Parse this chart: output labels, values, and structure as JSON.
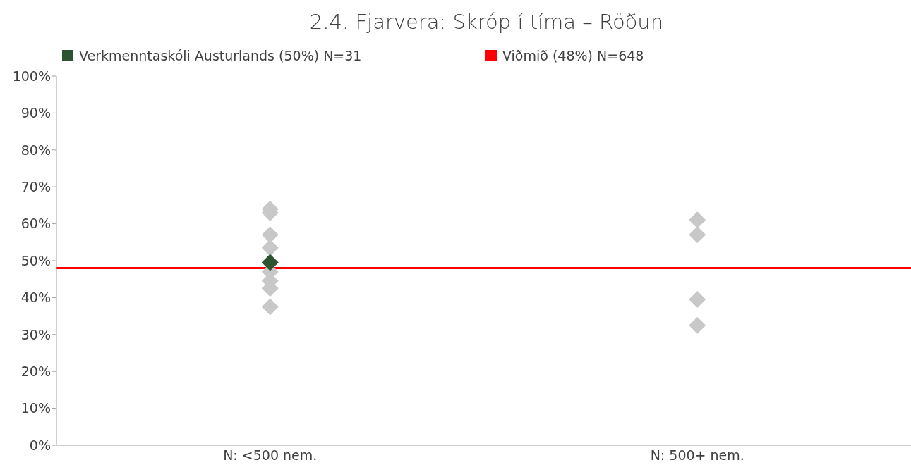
{
  "chart_data": {
    "type": "scatter",
    "title": "2.4. Fjarvera: Skróp í tíma – Röðun",
    "categories": [
      "N: <500 nem.",
      "N: 500+ nem."
    ],
    "series": [
      {
        "color": "#c8c8c8",
        "x": [
          "N: <500 nem.",
          "N: <500 nem.",
          "N: <500 nem.",
          "N: <500 nem.",
          "N: <500 nem.",
          "N: <500 nem.",
          "N: <500 nem.",
          "N: <500 nem.",
          "N: <500 nem.",
          "N: 500+ nem.",
          "N: 500+ nem.",
          "N: 500+ nem.",
          "N: 500+ nem."
        ],
        "values": [
          63,
          64,
          57,
          53.5,
          null,
          47,
          44.5,
          42.5,
          37.5,
          61,
          57,
          39.5,
          32.5
        ]
      },
      {
        "name": "Verkmenntaskóli Austurlands (50%) N=31",
        "color": "#2e5330",
        "x": [
          "N: <500 nem."
        ],
        "values": [
          49.5
        ]
      }
    ],
    "ref_lines": [
      {
        "axis": "y",
        "value": 48,
        "label": "Viðmið (48%) N=648",
        "color": "#ff0000"
      }
    ],
    "ylim": [
      0,
      100
    ],
    "yticks": [
      {
        "value": 0,
        "label": "0%"
      },
      {
        "value": 10,
        "label": "10%"
      },
      {
        "value": 20,
        "label": "20%"
      },
      {
        "value": 30,
        "label": "30%"
      },
      {
        "value": 40,
        "label": "40%"
      },
      {
        "value": 50,
        "label": "50%"
      },
      {
        "value": 60,
        "label": "60%"
      },
      {
        "value": 70,
        "label": "70%"
      },
      {
        "value": 80,
        "label": "80%"
      },
      {
        "value": 90,
        "label": "90%"
      },
      {
        "value": 100,
        "label": "100%"
      }
    ],
    "grid": false,
    "legend": "top",
    "marker": "diamond"
  }
}
